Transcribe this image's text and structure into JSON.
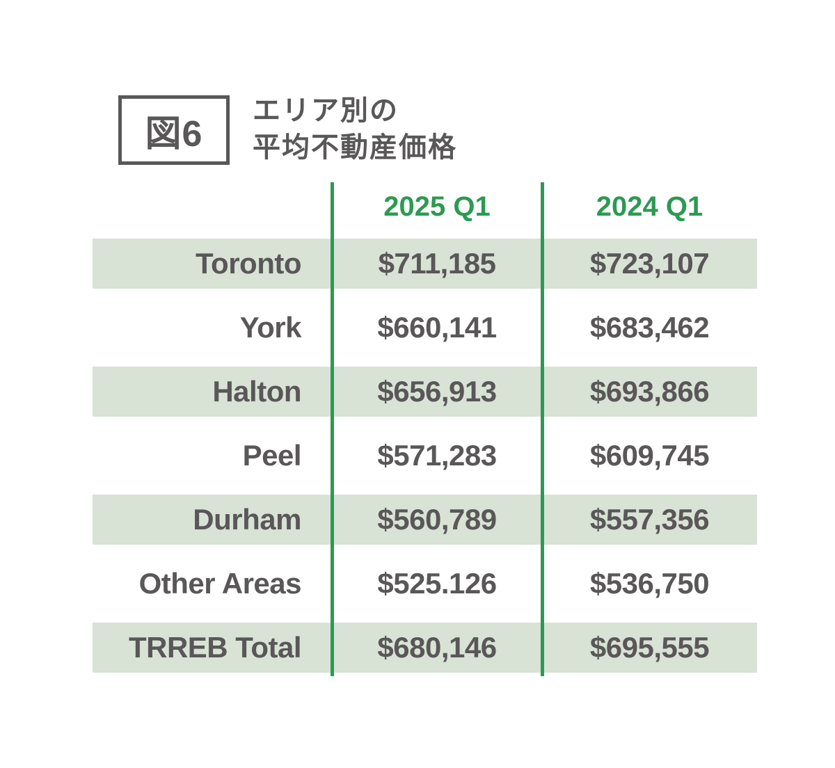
{
  "figure": {
    "label": "図6",
    "title_line1": "エリア別の",
    "title_line2": "平均不動産価格"
  },
  "table": {
    "col_headers": [
      "2025 Q1",
      "2024 Q1"
    ],
    "rows": [
      {
        "area": "Toronto",
        "v2025": "$711,185",
        "v2024": "$723,107"
      },
      {
        "area": "York",
        "v2025": "$660,141",
        "v2024": "$683,462"
      },
      {
        "area": "Halton",
        "v2025": "$656,913",
        "v2024": "$693,866"
      },
      {
        "area": "Peel",
        "v2025": "$571,283",
        "v2024": "$609,745"
      },
      {
        "area": "Durham",
        "v2025": "$560,789",
        "v2024": "$557,356"
      },
      {
        "area": "Other Areas",
        "v2025": "$525.126",
        "v2024": "$536,750"
      },
      {
        "area": "TRREB Total",
        "v2025": "$680,146",
        "v2024": "$695,555"
      }
    ]
  },
  "chart_data": {
    "type": "table",
    "title": "エリア別の平均不動産産価格",
    "figure_number": "図6",
    "categories": [
      "Toronto",
      "York",
      "Halton",
      "Peel",
      "Durham",
      "Other Areas",
      "TRREB Total"
    ],
    "series": [
      {
        "name": "2025 Q1",
        "values": [
          711185,
          660141,
          656913,
          571283,
          560789,
          525126,
          680146
        ]
      },
      {
        "name": "2024 Q1",
        "values": [
          723107,
          683462,
          693866,
          609745,
          557356,
          536750,
          695555
        ]
      }
    ],
    "layout_hints": {
      "row_shading": "alternating rows shaded light green starting with Toronto",
      "column_dividers": "two vertical green lines between columns",
      "header_text_color": "green"
    }
  },
  "colors": {
    "green": "#2c9a52",
    "band": "#d8e2d5",
    "text": "#595757"
  }
}
